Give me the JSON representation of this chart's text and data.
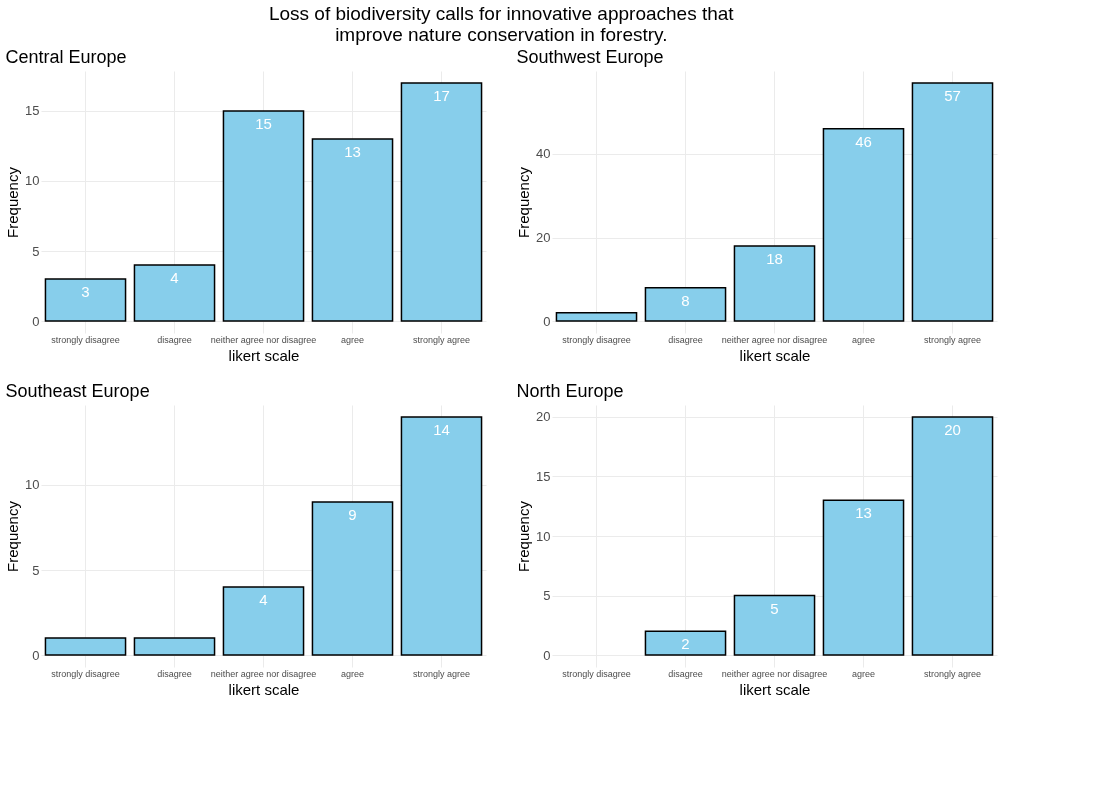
{
  "chart_data": [
    {
      "type": "bar",
      "title": "Central Europe",
      "annotations": [
        "Loss of biodiversity calls for innovative approaches that improve nature conservation in forestry."
      ],
      "xlabel": "likert scale",
      "ylabel": "Frequency",
      "categories": [
        "strongly disagree",
        "disagree",
        "neither agree nor disagree",
        "agree",
        "strongly agree"
      ],
      "series": [
        {
          "color": "#87ceeb",
          "values": [
            3,
            4,
            15,
            13,
            17
          ]
        }
      ],
      "ylim": [
        -0.85,
        17.85
      ],
      "yticks": [
        0,
        5,
        10,
        15
      ],
      "grid": true,
      "data_labels": true
    },
    {
      "type": "bar",
      "title": "Southwest Europe",
      "xlabel": "likert scale",
      "ylabel": "Frequency",
      "categories": [
        "strongly disagree",
        "disagree",
        "neither agree nor disagree",
        "agree",
        "strongly agree"
      ],
      "series": [
        {
          "color": "#87ceeb",
          "values": [
            2,
            8,
            18,
            46,
            57
          ]
        }
      ],
      "ylim": [
        -2.85,
        59.85
      ],
      "yticks": [
        0,
        20,
        40
      ],
      "grid": true,
      "value_labels": [
        null,
        "8",
        "18",
        "46",
        "57"
      ]
    },
    {
      "type": "bar",
      "title": "Southeast Europe",
      "xlabel": "likert scale",
      "ylabel": "Frequency",
      "categories": [
        "strongly disagree",
        "disagree",
        "neither agree nor disagree",
        "agree",
        "strongly agree"
      ],
      "series": [
        {
          "color": "#87ceeb",
          "values": [
            1,
            1,
            4,
            9,
            14
          ]
        }
      ],
      "ylim": [
        -0.7,
        14.7
      ],
      "yticks": [
        0,
        5,
        10
      ],
      "grid": true,
      "value_labels": [
        null,
        null,
        "4",
        "9",
        "14"
      ]
    },
    {
      "type": "bar",
      "title": "North Europe",
      "xlabel": "likert scale",
      "ylabel": "Frequency",
      "categories": [
        "strongly disagree",
        "disagree",
        "neither agree nor disagree",
        "agree",
        "strongly agree"
      ],
      "series": [
        {
          "color": "#87ceeb",
          "values": [
            null,
            2,
            5,
            13,
            20
          ]
        }
      ],
      "ylim": [
        -1,
        21
      ],
      "yticks": [
        0,
        5,
        10,
        15,
        20
      ],
      "grid": true,
      "data_labels": true
    }
  ]
}
